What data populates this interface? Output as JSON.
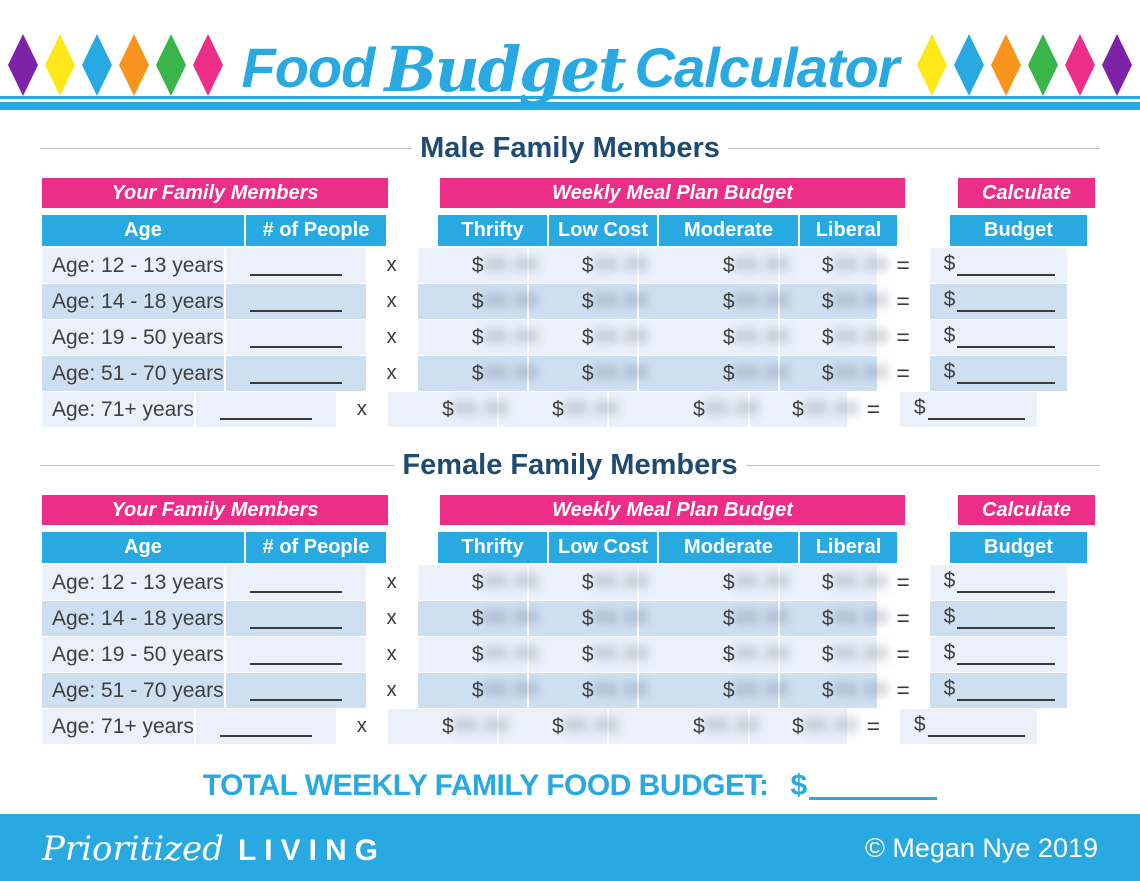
{
  "colors": {
    "accent_blue": "#29A9E1",
    "accent_pink": "#EC2E88",
    "navy_heading": "#1F4B73",
    "row_light": "#EAF1FA",
    "row_dark": "#CEDFF2",
    "diamond_purple": "#7E22A8",
    "diamond_yellow": "#FFE81A",
    "diamond_blue": "#29A9E1",
    "diamond_orange": "#F7941E",
    "diamond_green": "#3AB54A",
    "diamond_pink": "#EC2E88"
  },
  "header": {
    "title_food": "Food",
    "title_budget": "Budget",
    "title_calculator": "Calculator"
  },
  "sections": {
    "male": {
      "title": "Male Family Members"
    },
    "female": {
      "title": "Female Family Members"
    }
  },
  "table": {
    "family_header": "Your Family Members",
    "col_age": "Age",
    "col_people": "# of People",
    "plan_header": "Weekly Meal Plan Budget",
    "col_thrifty": "Thrifty",
    "col_low_cost": "Low Cost",
    "col_moderate": "Moderate",
    "col_liberal": "Liberal",
    "calc_header": "Calculate",
    "col_budget": "Budget"
  },
  "age_rows": [
    "Age: 12 - 13 years",
    "Age: 14 - 18 years",
    "Age: 19 - 50 years",
    "Age: 51 - 70 years",
    "Age: 71+ years"
  ],
  "symbols": {
    "multiply": "x",
    "equals": "=",
    "dollar": "$",
    "blurred_price_placeholder": "88.88"
  },
  "total": {
    "label": "TOTAL WEEKLY FAMILY FOOD BUDGET:",
    "dollar": "$"
  },
  "footer": {
    "brand_script": "Prioritized",
    "brand_caps": "LIVING",
    "copyright": "© Megan Nye 2019"
  }
}
